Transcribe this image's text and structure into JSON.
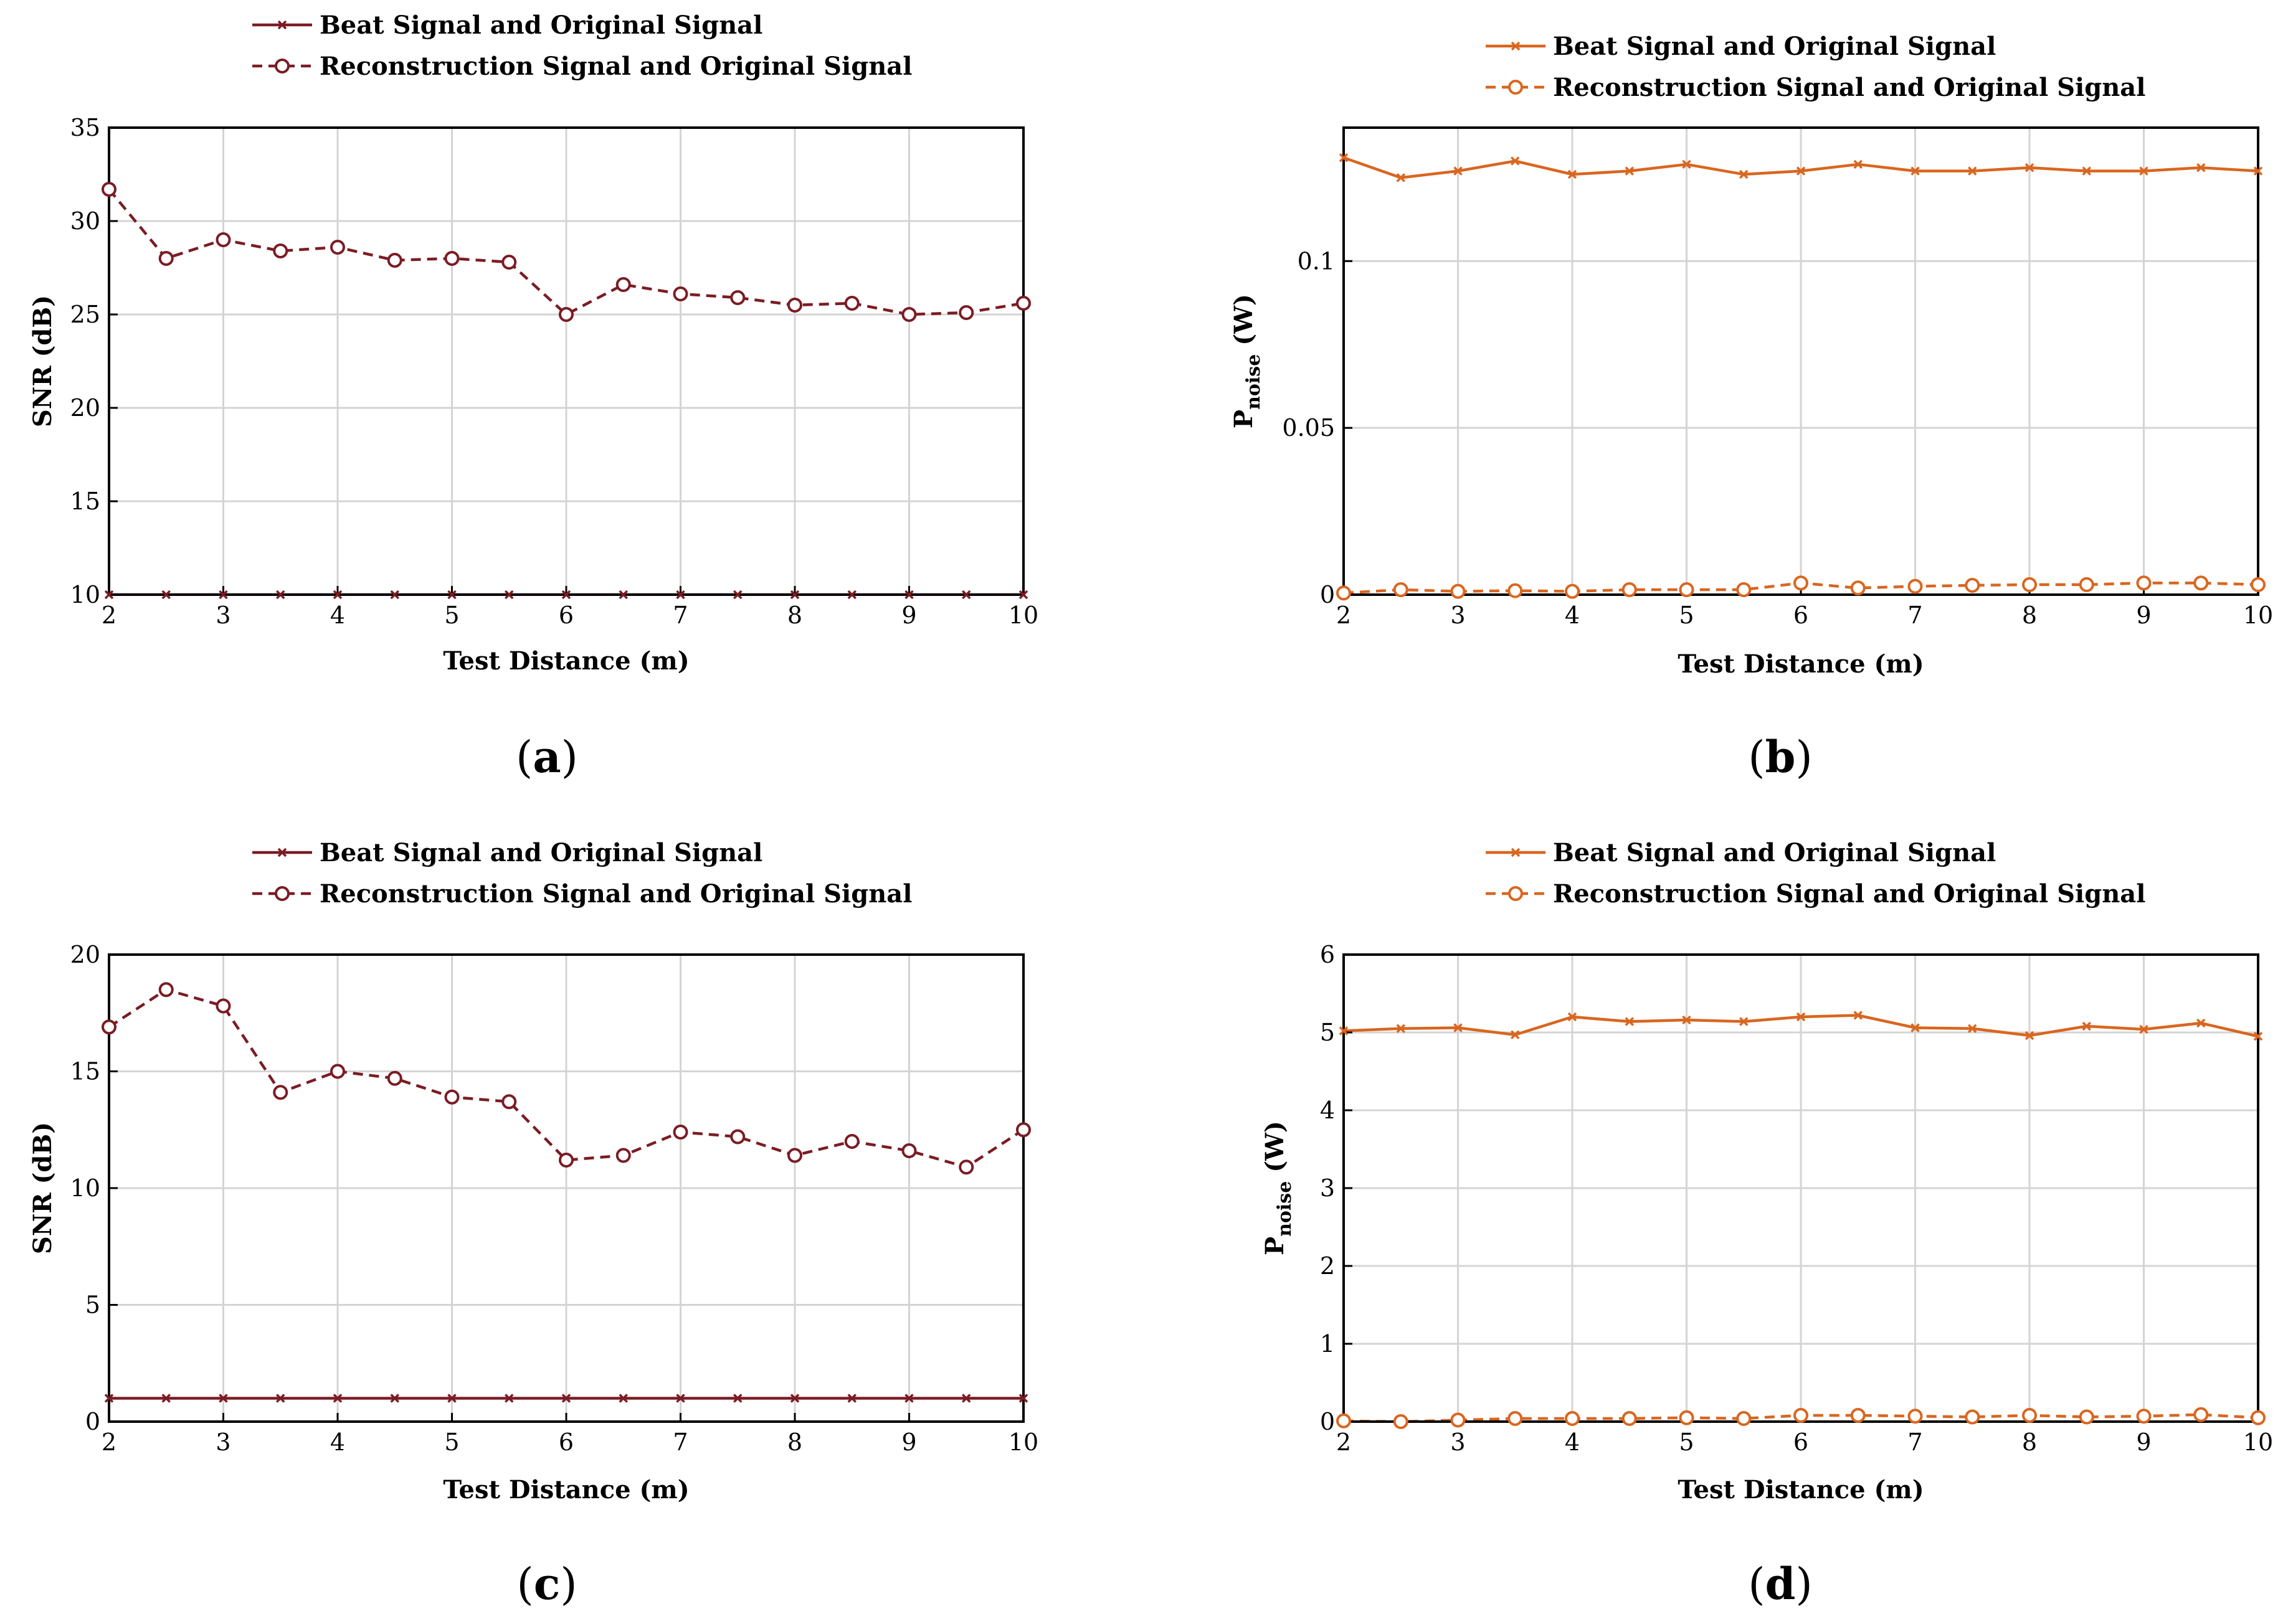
{
  "chart_data": [
    {
      "id": "a",
      "type": "line",
      "caption": "a",
      "xlabel": "Test Distance (m)",
      "ylabel": "SNR (dB)",
      "ylabel_main": "SNR (dB)",
      "ylabel_sub": "",
      "ylabel_tail": "",
      "xlim": [
        2,
        10
      ],
      "ylim": [
        10,
        35
      ],
      "xticks": [
        "2",
        "3",
        "4",
        "5",
        "6",
        "7",
        "8",
        "9",
        "10"
      ],
      "yticks": [
        "10",
        "15",
        "20",
        "25",
        "30",
        "35"
      ],
      "grid": true,
      "color": "#7b1c24",
      "legend": "top",
      "x": [
        2,
        2.5,
        3,
        3.5,
        4,
        4.5,
        5,
        5.5,
        6,
        6.5,
        7,
        7.5,
        8,
        8.5,
        9,
        9.5,
        10
      ],
      "series": [
        {
          "name": "Beat Signal and Original Signal",
          "style": "solid-x",
          "values": [
            10,
            10,
            10,
            10,
            10,
            10,
            10,
            10,
            10,
            10,
            10,
            10,
            10,
            10,
            10,
            10,
            10
          ]
        },
        {
          "name": "Reconstruction Signal and Original Signal",
          "style": "dashed-o",
          "values": [
            31.7,
            28.0,
            29.0,
            28.4,
            28.6,
            27.9,
            28.0,
            27.8,
            25.0,
            26.6,
            26.1,
            25.9,
            25.5,
            25.6,
            25.0,
            25.1,
            25.6
          ]
        }
      ]
    },
    {
      "id": "b",
      "type": "line",
      "caption": "b",
      "xlabel": "Test Distance (m)",
      "ylabel": "Pnoise (W)",
      "ylabel_main": "P",
      "ylabel_sub": "noise",
      "ylabel_tail": " (W)",
      "xlim": [
        2,
        10
      ],
      "ylim": [
        0,
        0.14
      ],
      "xticks": [
        "2",
        "3",
        "4",
        "5",
        "6",
        "7",
        "8",
        "9",
        "10"
      ],
      "yticks": [
        "0",
        "0.05",
        "0.1"
      ],
      "ytick_values": [
        0,
        0.05,
        0.1
      ],
      "grid": true,
      "color": "#d9661f",
      "legend": "top",
      "x": [
        2,
        2.5,
        3,
        3.5,
        4,
        4.5,
        5,
        5.5,
        6,
        6.5,
        7,
        7.5,
        8,
        8.5,
        9,
        9.5,
        10
      ],
      "series": [
        {
          "name": "Beat Signal and Original Signal",
          "style": "solid-x",
          "values": [
            0.131,
            0.125,
            0.127,
            0.13,
            0.126,
            0.127,
            0.129,
            0.126,
            0.127,
            0.129,
            0.127,
            0.127,
            0.128,
            0.127,
            0.127,
            0.128,
            0.127
          ]
        },
        {
          "name": "Reconstruction Signal and Original Signal",
          "style": "dashed-o",
          "values": [
            0.0005,
            0.0015,
            0.001,
            0.0012,
            0.001,
            0.0015,
            0.0015,
            0.0015,
            0.0035,
            0.002,
            0.0025,
            0.0028,
            0.003,
            0.003,
            0.0035,
            0.0035,
            0.003
          ]
        }
      ]
    },
    {
      "id": "c",
      "type": "line",
      "caption": "c",
      "xlabel": "Test Distance (m)",
      "ylabel": "SNR (dB)",
      "ylabel_main": "SNR (dB)",
      "ylabel_sub": "",
      "ylabel_tail": "",
      "xlim": [
        2,
        10
      ],
      "ylim": [
        0,
        20
      ],
      "xticks": [
        "2",
        "3",
        "4",
        "5",
        "6",
        "7",
        "8",
        "9",
        "10"
      ],
      "yticks": [
        "0",
        "5",
        "10",
        "15",
        "20"
      ],
      "grid": true,
      "color": "#7b1c24",
      "legend": "top",
      "x": [
        2,
        2.5,
        3,
        3.5,
        4,
        4.5,
        5,
        5.5,
        6,
        6.5,
        7,
        7.5,
        8,
        8.5,
        9,
        9.5,
        10
      ],
      "series": [
        {
          "name": "Beat Signal and Original Signal",
          "style": "solid-x",
          "values": [
            1,
            1,
            1,
            1,
            1,
            1,
            1,
            1,
            1,
            1,
            1,
            1,
            1,
            1,
            1,
            1,
            1
          ]
        },
        {
          "name": "Reconstruction Signal and Original Signal",
          "style": "dashed-o",
          "values": [
            16.9,
            18.5,
            17.8,
            14.1,
            15.0,
            14.7,
            13.9,
            13.7,
            11.2,
            11.4,
            12.4,
            12.2,
            11.4,
            12.0,
            11.6,
            10.9,
            12.5
          ]
        }
      ]
    },
    {
      "id": "d",
      "type": "line",
      "caption": "d",
      "xlabel": "Test Distance (m)",
      "ylabel": "Pnoise (W)",
      "ylabel_main": "P",
      "ylabel_sub": "noise",
      "ylabel_tail": " (W)",
      "xlim": [
        2,
        10
      ],
      "ylim": [
        0,
        6
      ],
      "xticks": [
        "2",
        "3",
        "4",
        "5",
        "6",
        "7",
        "8",
        "9",
        "10"
      ],
      "yticks": [
        "0",
        "1",
        "2",
        "3",
        "4",
        "5",
        "6"
      ],
      "grid": true,
      "color": "#d9661f",
      "legend": "top",
      "x": [
        2,
        2.5,
        3,
        3.5,
        4,
        4.5,
        5,
        5.5,
        6,
        6.5,
        7,
        7.5,
        8,
        8.5,
        9,
        9.5,
        10
      ],
      "series": [
        {
          "name": "Beat Signal and Original Signal",
          "style": "solid-x",
          "values": [
            5.02,
            5.05,
            5.06,
            4.97,
            5.2,
            5.14,
            5.16,
            5.14,
            5.2,
            5.22,
            5.06,
            5.05,
            4.96,
            5.08,
            5.04,
            5.12,
            4.95
          ]
        },
        {
          "name": "Reconstruction Signal and Original Signal",
          "style": "dashed-o",
          "values": [
            0.01,
            0.0,
            0.02,
            0.04,
            0.04,
            0.04,
            0.05,
            0.04,
            0.08,
            0.08,
            0.07,
            0.06,
            0.08,
            0.06,
            0.07,
            0.09,
            0.05
          ]
        }
      ]
    }
  ]
}
